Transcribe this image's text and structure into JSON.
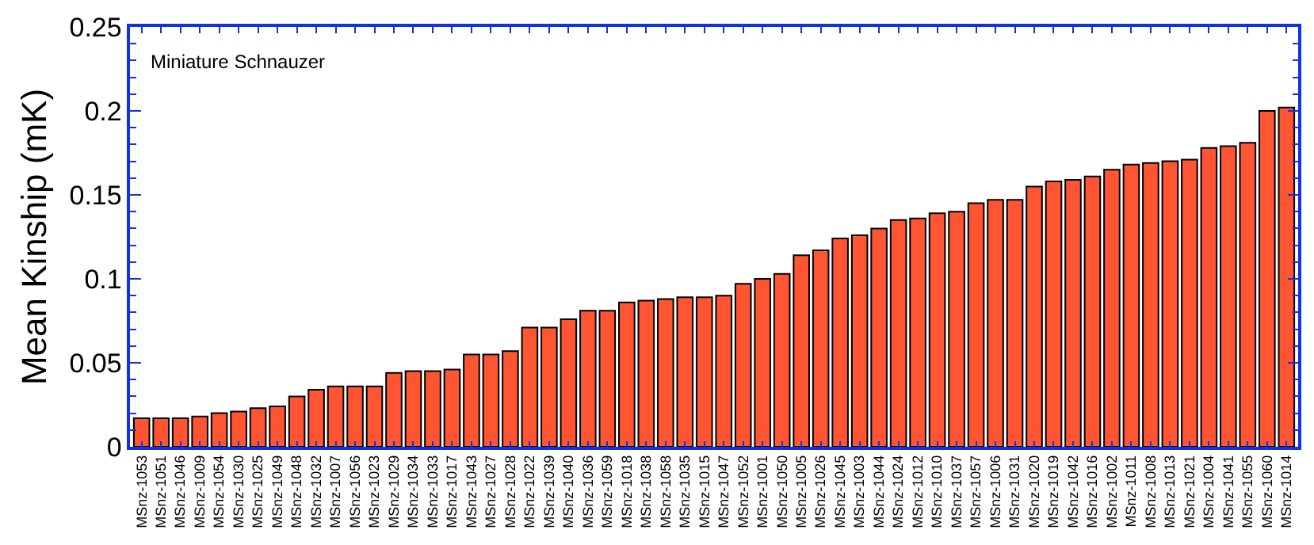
{
  "chart_data": {
    "type": "bar",
    "title": "Miniature Schnauzer",
    "ylabel": "Mean Kinship (mK)",
    "categories": [
      "MSnz-1053",
      "MSnz-1051",
      "MSnz-1046",
      "MSnz-1009",
      "MSnz-1054",
      "MSnz-1030",
      "MSnz-1025",
      "MSnz-1049",
      "MSnz-1048",
      "MSnz-1032",
      "MSnz-1007",
      "MSnz-1056",
      "MSnz-1023",
      "MSnz-1029",
      "MSnz-1034",
      "MSnz-1033",
      "MSnz-1017",
      "MSnz-1043",
      "MSnz-1027",
      "MSnz-1028",
      "MSnz-1022",
      "MSnz-1039",
      "MSnz-1040",
      "MSnz-1036",
      "MSnz-1059",
      "MSnz-1018",
      "MSnz-1038",
      "MSnz-1058",
      "MSnz-1035",
      "MSnz-1015",
      "MSnz-1047",
      "MSnz-1052",
      "MSnz-1001",
      "MSnz-1050",
      "MSnz-1005",
      "MSnz-1026",
      "MSnz-1045",
      "MSnz-1003",
      "MSnz-1044",
      "MSnz-1024",
      "MSnz-1012",
      "MSnz-1010",
      "MSnz-1037",
      "MSnz-1057",
      "MSnz-1006",
      "MSnz-1031",
      "MSnz-1020",
      "MSnz-1019",
      "MSnz-1042",
      "MSnz-1016",
      "MSnz-1002",
      "MSnz-1011",
      "MSnz-1008",
      "MSnz-1013",
      "MSnz-1021",
      "MSnz-1004",
      "MSnz-1041",
      "MSnz-1055",
      "MSnz-1060",
      "MSnz-1014"
    ],
    "values": [
      0.017,
      0.017,
      0.017,
      0.018,
      0.02,
      0.021,
      0.023,
      0.024,
      0.03,
      0.034,
      0.036,
      0.036,
      0.036,
      0.044,
      0.045,
      0.045,
      0.046,
      0.055,
      0.055,
      0.057,
      0.071,
      0.071,
      0.076,
      0.081,
      0.081,
      0.086,
      0.087,
      0.088,
      0.089,
      0.089,
      0.09,
      0.097,
      0.1,
      0.103,
      0.114,
      0.117,
      0.124,
      0.126,
      0.13,
      0.135,
      0.136,
      0.139,
      0.14,
      0.145,
      0.147,
      0.147,
      0.155,
      0.158,
      0.159,
      0.161,
      0.165,
      0.168,
      0.169,
      0.17,
      0.171,
      0.178,
      0.179,
      0.181,
      0.2,
      0.202
    ],
    "color": "#ff5533",
    "ylim": [
      0,
      0.25
    ],
    "yticks": [
      0,
      0.05,
      0.1,
      0.15,
      0.2,
      0.25
    ]
  }
}
